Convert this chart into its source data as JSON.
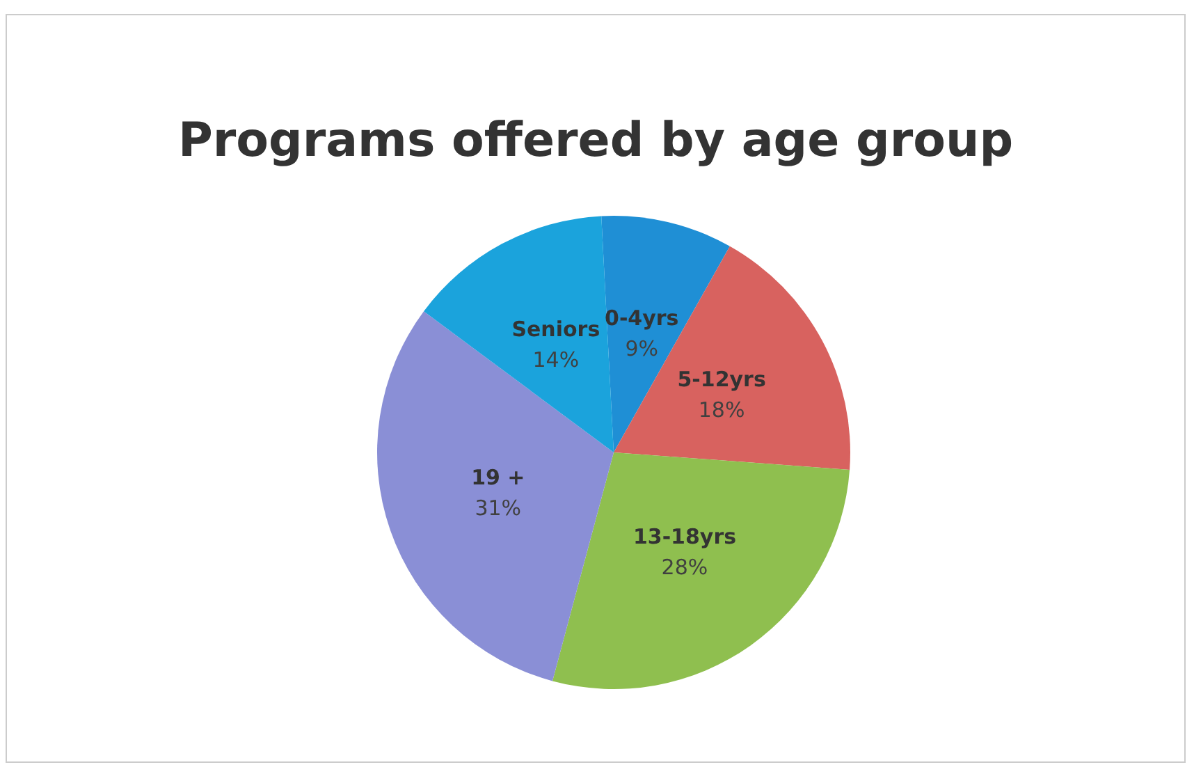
{
  "chart_data": {
    "type": "pie",
    "title": "Programs offered by age group",
    "categories": [
      "0-4yrs",
      "5-12yrs",
      "13-18yrs",
      "19 +",
      "Seniors"
    ],
    "values": [
      9,
      18,
      28,
      31,
      14
    ],
    "value_labels": [
      "9%",
      "18%",
      "28%",
      "31%",
      "14%"
    ],
    "colors": [
      "#1f8fd5",
      "#d8625f",
      "#8fbf4f",
      "#8a8fd6",
      "#1ba3dc"
    ],
    "legend": false
  }
}
